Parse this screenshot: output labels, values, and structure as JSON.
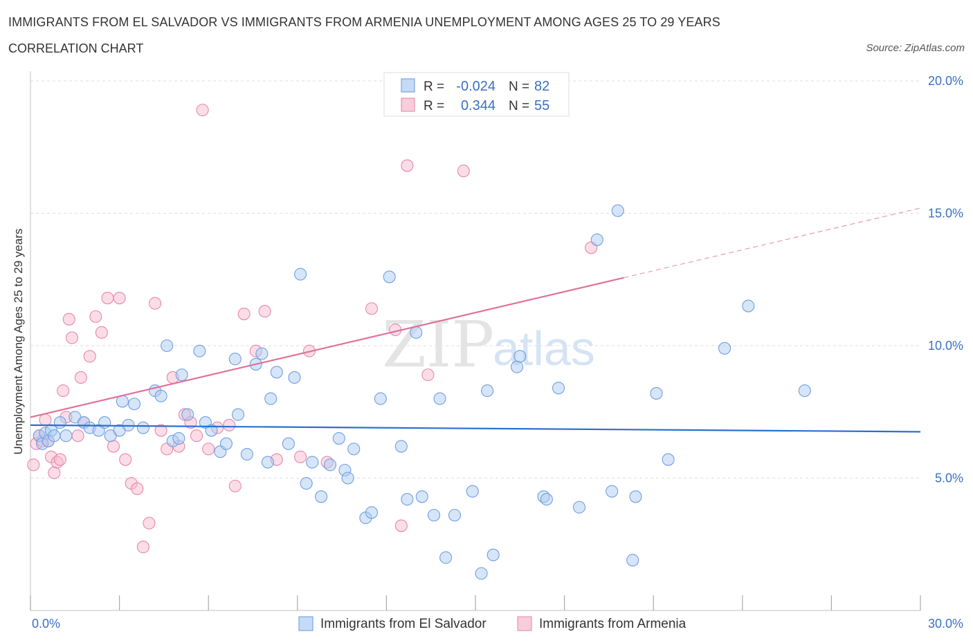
{
  "title": "IMMIGRANTS FROM EL SALVADOR VS IMMIGRANTS FROM ARMENIA UNEMPLOYMENT AMONG AGES 25 TO 29 YEARS",
  "subtitle": "CORRELATION CHART",
  "source": "Source: ZipAtlas.com",
  "watermark": {
    "zip": "ZIP",
    "atlas": "atlas"
  },
  "colors": {
    "blue_fill": "#aecbf2",
    "blue_stroke": "#6f9fe0",
    "blue_line": "#2a6fd0",
    "pink_fill": "#f7bcd0",
    "pink_stroke": "#e886a8",
    "pink_line": "#e0709a",
    "value_text": "#3a6fc4",
    "grid": "#dddddd",
    "axis": "#cccccc"
  },
  "legend_top": [
    {
      "r_label": "R =",
      "r_value": "-0.024",
      "n_label": "N =",
      "n_value": "82",
      "color": "blue"
    },
    {
      "r_label": "R =",
      "r_value": "0.344",
      "n_label": "N =",
      "n_value": "55",
      "color": "pink"
    }
  ],
  "chart_data": {
    "type": "scatter",
    "xlabel": "",
    "ylabel": "Unemployment Among Ages 25 to 29 years",
    "xlim": [
      0,
      30
    ],
    "ylim": [
      0,
      20
    ],
    "x_tick_labels": [
      "0.0%",
      "30.0%"
    ],
    "y_ticks": [
      5,
      10,
      15,
      20
    ],
    "y_tick_labels": [
      "5.0%",
      "10.0%",
      "15.0%",
      "20.0%"
    ],
    "grid": true,
    "legend_position": "bottom-center",
    "series": [
      {
        "name": "Immigrants from El Salvador",
        "color": "blue",
        "trend": {
          "x": [
            0,
            30
          ],
          "y": [
            7.0,
            6.75
          ],
          "dashed_from_x": null
        },
        "points": [
          [
            0.3,
            6.6
          ],
          [
            0.4,
            6.3
          ],
          [
            0.5,
            6.7
          ],
          [
            0.6,
            6.4
          ],
          [
            0.7,
            6.8
          ],
          [
            0.8,
            6.6
          ],
          [
            1.0,
            7.1
          ],
          [
            1.2,
            6.6
          ],
          [
            1.5,
            7.3
          ],
          [
            1.8,
            7.1
          ],
          [
            2.0,
            6.9
          ],
          [
            2.3,
            6.8
          ],
          [
            2.5,
            7.1
          ],
          [
            2.7,
            6.6
          ],
          [
            3.0,
            6.8
          ],
          [
            3.1,
            7.9
          ],
          [
            3.3,
            7.0
          ],
          [
            3.5,
            7.8
          ],
          [
            3.8,
            6.9
          ],
          [
            4.2,
            8.3
          ],
          [
            4.4,
            8.1
          ],
          [
            4.6,
            10.0
          ],
          [
            4.8,
            6.4
          ],
          [
            5.0,
            6.5
          ],
          [
            5.1,
            8.9
          ],
          [
            5.3,
            7.4
          ],
          [
            5.7,
            9.8
          ],
          [
            5.9,
            7.1
          ],
          [
            6.1,
            6.8
          ],
          [
            6.4,
            6.0
          ],
          [
            6.6,
            6.3
          ],
          [
            6.9,
            9.5
          ],
          [
            7.0,
            7.4
          ],
          [
            7.3,
            5.9
          ],
          [
            7.6,
            9.3
          ],
          [
            7.8,
            9.7
          ],
          [
            8.0,
            5.6
          ],
          [
            8.1,
            8.0
          ],
          [
            8.3,
            9.0
          ],
          [
            8.7,
            6.3
          ],
          [
            8.9,
            8.8
          ],
          [
            9.1,
            12.7
          ],
          [
            9.3,
            4.8
          ],
          [
            9.5,
            5.6
          ],
          [
            9.8,
            4.3
          ],
          [
            10.1,
            5.5
          ],
          [
            10.4,
            6.5
          ],
          [
            10.6,
            5.3
          ],
          [
            10.7,
            5.0
          ],
          [
            10.9,
            6.1
          ],
          [
            11.3,
            3.5
          ],
          [
            11.5,
            3.7
          ],
          [
            11.8,
            8.0
          ],
          [
            12.1,
            12.6
          ],
          [
            12.5,
            6.2
          ],
          [
            12.7,
            4.2
          ],
          [
            13.0,
            10.5
          ],
          [
            13.2,
            4.3
          ],
          [
            13.6,
            3.6
          ],
          [
            13.8,
            8.0
          ],
          [
            14.0,
            2.0
          ],
          [
            14.3,
            3.6
          ],
          [
            14.9,
            4.5
          ],
          [
            15.2,
            1.4
          ],
          [
            15.4,
            8.3
          ],
          [
            15.6,
            2.1
          ],
          [
            16.4,
            9.2
          ],
          [
            16.5,
            9.6
          ],
          [
            17.3,
            4.3
          ],
          [
            17.4,
            4.2
          ],
          [
            17.8,
            8.4
          ],
          [
            18.5,
            3.9
          ],
          [
            19.1,
            14.0
          ],
          [
            19.6,
            4.5
          ],
          [
            19.8,
            15.1
          ],
          [
            20.3,
            1.9
          ],
          [
            20.4,
            4.3
          ],
          [
            21.1,
            8.2
          ],
          [
            21.5,
            5.7
          ],
          [
            23.4,
            9.9
          ],
          [
            24.2,
            11.5
          ],
          [
            26.1,
            8.3
          ]
        ]
      },
      {
        "name": "Immigrants from Armenia",
        "color": "pink",
        "trend": {
          "x": [
            0,
            30
          ],
          "y": [
            7.3,
            15.2
          ],
          "dashed_from_x": 20.0
        },
        "points": [
          [
            0.1,
            5.5
          ],
          [
            0.2,
            6.3
          ],
          [
            0.3,
            6.6
          ],
          [
            0.4,
            6.4
          ],
          [
            0.5,
            7.2
          ],
          [
            0.6,
            6.4
          ],
          [
            0.7,
            5.8
          ],
          [
            0.8,
            5.2
          ],
          [
            0.9,
            5.6
          ],
          [
            1.0,
            5.7
          ],
          [
            1.1,
            8.3
          ],
          [
            1.2,
            7.3
          ],
          [
            1.3,
            11.0
          ],
          [
            1.4,
            10.3
          ],
          [
            1.6,
            6.6
          ],
          [
            1.7,
            8.8
          ],
          [
            1.8,
            7.1
          ],
          [
            2.0,
            9.6
          ],
          [
            2.2,
            11.1
          ],
          [
            2.4,
            10.5
          ],
          [
            2.6,
            11.8
          ],
          [
            2.8,
            6.2
          ],
          [
            3.0,
            11.8
          ],
          [
            3.2,
            5.7
          ],
          [
            3.4,
            4.8
          ],
          [
            3.6,
            4.6
          ],
          [
            3.8,
            2.4
          ],
          [
            4.0,
            3.3
          ],
          [
            4.2,
            11.6
          ],
          [
            4.4,
            6.8
          ],
          [
            4.6,
            6.1
          ],
          [
            4.8,
            8.8
          ],
          [
            5.0,
            6.2
          ],
          [
            5.2,
            7.4
          ],
          [
            5.4,
            7.1
          ],
          [
            5.6,
            6.6
          ],
          [
            5.8,
            18.9
          ],
          [
            6.0,
            6.1
          ],
          [
            6.3,
            6.9
          ],
          [
            6.7,
            7.0
          ],
          [
            6.9,
            4.7
          ],
          [
            7.2,
            11.2
          ],
          [
            7.6,
            9.8
          ],
          [
            7.9,
            11.3
          ],
          [
            8.3,
            5.7
          ],
          [
            9.1,
            5.8
          ],
          [
            9.4,
            9.8
          ],
          [
            10.0,
            5.6
          ],
          [
            11.5,
            11.4
          ],
          [
            12.3,
            10.6
          ],
          [
            12.5,
            3.2
          ],
          [
            12.7,
            16.8
          ],
          [
            13.4,
            8.9
          ],
          [
            14.6,
            16.6
          ],
          [
            18.9,
            13.7
          ]
        ]
      }
    ]
  },
  "legend_bottom": [
    "Immigrants from El Salvador",
    "Immigrants from Armenia"
  ]
}
